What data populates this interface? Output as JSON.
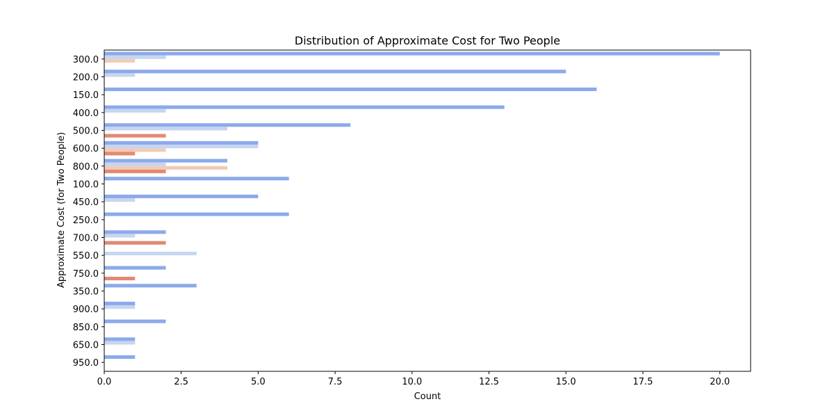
{
  "chart_data": {
    "type": "bar",
    "orientation": "horizontal",
    "title": "Distribution of Approximate Cost for Two People",
    "xlabel": "Count",
    "ylabel": "Approximate Cost (for Two People)",
    "xlim": [
      0,
      21
    ],
    "xticks": [
      0.0,
      2.5,
      5.0,
      7.5,
      10.0,
      12.5,
      15.0,
      17.5,
      20.0
    ],
    "xtick_labels": [
      "0.0",
      "2.5",
      "5.0",
      "7.5",
      "10.0",
      "12.5",
      "15.0",
      "17.5",
      "20.0"
    ],
    "categories": [
      "300.0",
      "200.0",
      "150.0",
      "400.0",
      "500.0",
      "600.0",
      "800.0",
      "100.0",
      "450.0",
      "250.0",
      "700.0",
      "550.0",
      "750.0",
      "350.0",
      "900.0",
      "850.0",
      "650.0",
      "950.0"
    ],
    "grid": false,
    "legend": "none",
    "series": [
      {
        "color": "#8caaeb",
        "values": [
          20,
          15,
          16,
          13,
          8,
          5,
          4,
          6,
          5,
          6,
          2,
          0,
          2,
          3,
          1,
          2,
          1,
          1
        ]
      },
      {
        "color": "#c6d6f0",
        "values": [
          2,
          1,
          0,
          2,
          4,
          5,
          2,
          0,
          1,
          0,
          1,
          3,
          0,
          0,
          1,
          0,
          1,
          0
        ]
      },
      {
        "color": "#f1cbb6",
        "values": [
          1,
          0,
          0,
          0,
          0,
          2,
          4,
          0,
          0,
          0,
          0,
          0,
          0,
          0,
          0,
          0,
          0,
          0
        ]
      },
      {
        "color": "#e28a71",
        "values": [
          0,
          0,
          0,
          0,
          2,
          1,
          2,
          0,
          0,
          0,
          2,
          0,
          1,
          0,
          0,
          0,
          0,
          0
        ]
      }
    ]
  }
}
